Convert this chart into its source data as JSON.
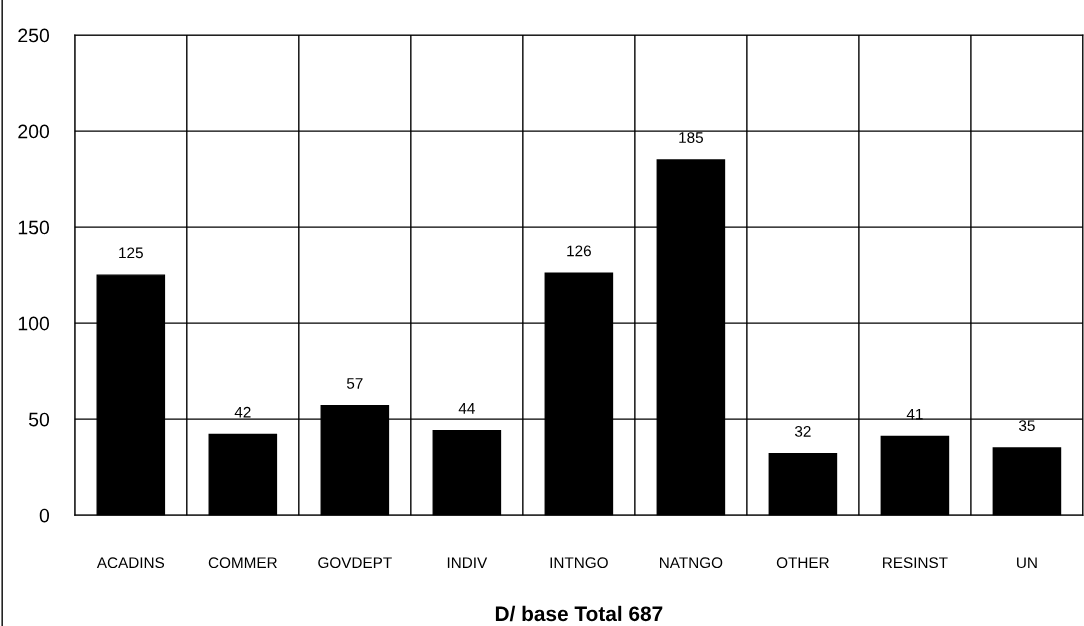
{
  "chart_data": {
    "type": "bar",
    "xlabel": "D/ base Total 687",
    "categories": [
      "ACADINS",
      "COMMER",
      "GOVDEPT",
      "INDIV",
      "INTNGO",
      "NATNGO",
      "OTHER",
      "RESINST",
      "UN"
    ],
    "values": [
      125,
      42,
      57,
      44,
      126,
      185,
      32,
      41,
      35
    ],
    "color": "#000000",
    "ylim": [
      0,
      250
    ],
    "yticks": [
      0,
      50,
      100,
      150,
      200,
      250
    ],
    "grid": true,
    "data_labels": true
  }
}
